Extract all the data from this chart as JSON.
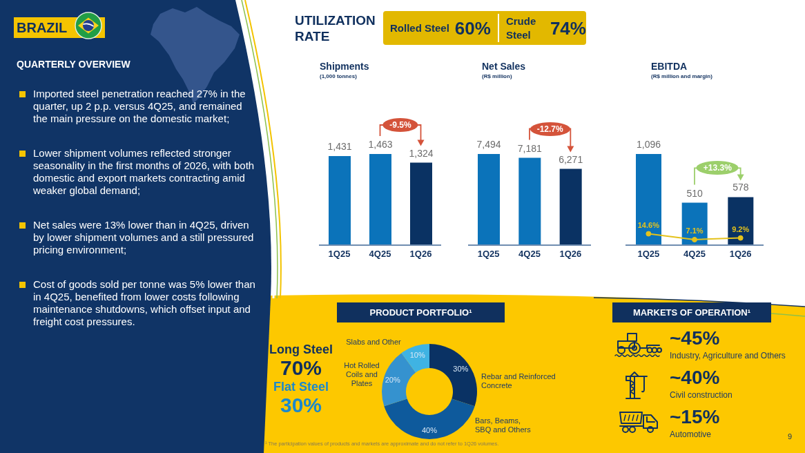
{
  "chart_data": [
    {
      "type": "other",
      "title": "BRAZIL",
      "subtitle": "QUARTERLY OVERVIEW",
      "annotations": [
        "Imported steel penetration reached 27% in the quarter, up 2 p.p. versus 4Q25, and remained the main pressure on the domestic market;",
        "Lower shipment volumes reflected stronger seasonality in the first months of 2026, with both domestic and export markets contracting amid weaker global demand;",
        "Net sales were 13% lower than in 4Q25, driven by lower shipment volumes and a still pressured pricing environment;",
        "Cost of goods sold per tonne was 5% lower than in 4Q25, benefited from lower costs following maintenance shutdowns, which offset input and freight cost pressures."
      ]
    },
    {
      "type": "other",
      "title": "UTILIZATION RATE",
      "annotations": [
        "Rolled Steel",
        "60%",
        "Crude Steel",
        "74%"
      ]
    },
    {
      "type": "bar",
      "title": "Shipments",
      "subtitle": "(1,000 tonnes)",
      "categories": [
        "1Q25",
        "4Q25",
        "1Q26"
      ],
      "values": [
        1431,
        1463,
        1324
      ],
      "colors": [
        "#0b73ba",
        "#0b73ba",
        "#0a3263"
      ],
      "value_labels": [
        "1,431",
        "1,463",
        "1,324"
      ],
      "annotations": [
        "-9.5%"
      ],
      "tick_labels": "x"
    },
    {
      "type": "bar",
      "title": "Net Sales",
      "subtitle": "(R$ million)",
      "categories": [
        "1Q25",
        "4Q25",
        "1Q26"
      ],
      "values": [
        7494,
        7181,
        6271
      ],
      "colors": [
        "#0b73ba",
        "#0b73ba",
        "#0a3263"
      ],
      "value_labels": [
        "7,494",
        "7,181",
        "6,271"
      ],
      "annotations": [
        "-12.7%"
      ],
      "tick_labels": "x"
    },
    {
      "type": "bar",
      "title": "EBITDA",
      "subtitle": "(R$ million and margin)",
      "categories": [
        "1Q25",
        "4Q25",
        "1Q26"
      ],
      "series": [
        {
          "type": "bar",
          "colors": [
            "#0b73ba",
            "#0b73ba",
            "#0a3263"
          ],
          "values": [
            1096,
            510,
            578
          ],
          "value_labels": [
            "1,096",
            "510",
            "578"
          ]
        },
        {
          "type": "line",
          "axis": "y2",
          "color": "#e4c21c",
          "values": [
            14.6,
            7.1,
            9.2
          ],
          "value_labels": [
            "14.6%",
            "7.1%",
            "9.2%"
          ],
          "marker": "circle"
        }
      ],
      "annotations": [
        "+13.3%"
      ],
      "tick_labels": "x"
    },
    {
      "type": "donut",
      "title": "PRODUCT PORTFOLIO¹",
      "categories": [
        "Rebar and Reinforced Concrete",
        "Bars, Beams, SBQ and Others",
        "Hot Rolled Coils and Plates",
        "Slabs and Other"
      ],
      "values": [
        30,
        40,
        20,
        10
      ],
      "colors": [
        "#0a3264",
        "#0e5a9c",
        "#3592cf",
        "#3fb3e3"
      ],
      "value_labels": [
        "30%",
        "40%",
        "20%",
        "10%"
      ],
      "annotations": [
        "Long Steel",
        "70%",
        "Flat Steel",
        "30%",
        "¹ The participation values of products and markets are approximate and do not refer to 1Q26 volumes."
      ]
    },
    {
      "type": "other",
      "title": "MARKETS OF OPERATION¹",
      "annotations": [
        "~45%",
        "Industry, Agriculture and Others",
        "~40%",
        "Civil construction",
        "~15%",
        "Automotive",
        "9"
      ]
    }
  ]
}
